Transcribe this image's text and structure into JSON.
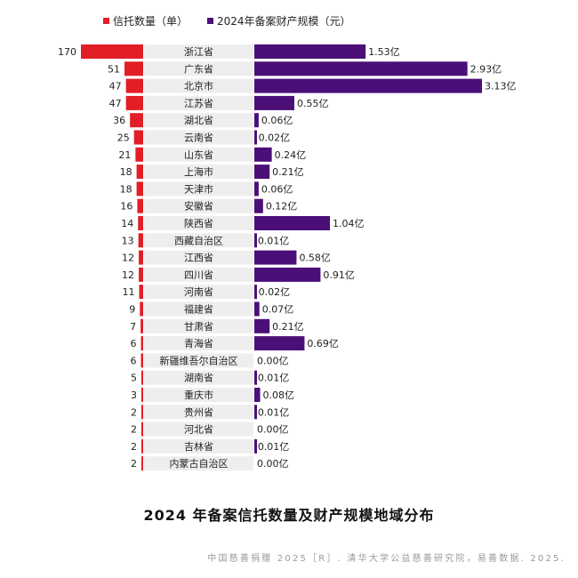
{
  "chart_data": {
    "type": "bar",
    "title": "2024 年备案信托数量及财产规模地域分布",
    "source": "中国慈善捐赠 2025［R］. 清华大学公益慈善研究院，易善数据. 2025.",
    "colors": {
      "count": "#e21e26",
      "amount": "#4b0f78",
      "label_bg": "#eeeeee"
    },
    "legend": [
      {
        "name": "信托数量（单）",
        "color": "#e21e26"
      },
      {
        "name": "2024年备案财产规模（元）",
        "color": "#4b0f78"
      }
    ],
    "categories": [
      "浙江省",
      "广东省",
      "北京市",
      "江苏省",
      "湖北省",
      "云南省",
      "山东省",
      "上海市",
      "天津市",
      "安徽省",
      "陕西省",
      "西藏自治区",
      "江西省",
      "四川省",
      "河南省",
      "福建省",
      "甘肃省",
      "青海省",
      "新疆维吾尔自治区",
      "湖南省",
      "重庆市",
      "贵州省",
      "河北省",
      "吉林省",
      "内蒙古自治区"
    ],
    "series": [
      {
        "name": "信托数量（单）",
        "values": [
          170,
          51,
          47,
          47,
          36,
          25,
          21,
          18,
          18,
          16,
          14,
          13,
          12,
          12,
          11,
          9,
          7,
          6,
          6,
          5,
          3,
          2,
          2,
          2,
          2
        ]
      },
      {
        "name": "2024年备案财产规模（元）",
        "values": [
          1.53,
          2.93,
          3.13,
          0.55,
          0.06,
          0.02,
          0.24,
          0.21,
          0.06,
          0.12,
          1.04,
          0.01,
          0.58,
          0.91,
          0.02,
          0.07,
          0.21,
          0.69,
          0.0,
          0.01,
          0.08,
          0.01,
          0.0,
          0.01,
          0.0
        ],
        "labels": [
          "1.53亿",
          "2.93亿",
          "3.13亿",
          "0.55亿",
          "0.06亿",
          "0.02亿",
          "0.24亿",
          "0.21亿",
          "0.06亿",
          "0.12亿",
          "1.04亿",
          "0.01亿",
          "0.58亿",
          "0.91亿",
          "0.02亿",
          "0.07亿",
          "0.21亿",
          "0.69亿",
          "0.00亿",
          "0.01亿",
          "0.08亿",
          "0.01亿",
          "0.00亿",
          "0.01亿",
          "0.00亿"
        ]
      }
    ]
  }
}
